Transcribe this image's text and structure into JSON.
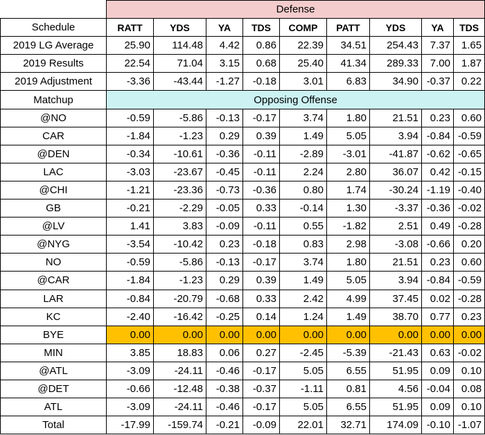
{
  "header": {
    "defense_label": "Defense",
    "schedule_label": "Schedule",
    "columns": [
      "RATT",
      "YDS",
      "YA",
      "TDS",
      "COMP",
      "PATT",
      "YDS",
      "YA",
      "TDS"
    ]
  },
  "summary_rows": [
    {
      "label": "2019 LG Average",
      "values": [
        "25.90",
        "114.48",
        "4.42",
        "0.86",
        "22.39",
        "34.51",
        "254.43",
        "7.37",
        "1.65"
      ]
    },
    {
      "label": "2019 Results",
      "values": [
        "22.54",
        "71.04",
        "3.15",
        "0.68",
        "25.40",
        "41.34",
        "289.33",
        "7.00",
        "1.87"
      ]
    },
    {
      "label": "2019 Adjustment",
      "values": [
        "-3.36",
        "-43.44",
        "-1.27",
        "-0.18",
        "3.01",
        "6.83",
        "34.90",
        "-0.37",
        "0.22"
      ]
    }
  ],
  "matchup_header": {
    "label": "Matchup",
    "band_label": "Opposing Offense"
  },
  "matchups": [
    {
      "opponent": "@NO",
      "values": [
        "-0.59",
        "-5.86",
        "-0.13",
        "-0.17",
        "3.74",
        "1.80",
        "21.51",
        "0.23",
        "0.60"
      ]
    },
    {
      "opponent": "CAR",
      "values": [
        "-1.84",
        "-1.23",
        "0.29",
        "0.39",
        "1.49",
        "5.05",
        "3.94",
        "-0.84",
        "-0.59"
      ]
    },
    {
      "opponent": "@DEN",
      "values": [
        "-0.34",
        "-10.61",
        "-0.36",
        "-0.11",
        "-2.89",
        "-3.01",
        "-41.87",
        "-0.62",
        "-0.65"
      ]
    },
    {
      "opponent": "LAC",
      "values": [
        "-3.03",
        "-23.67",
        "-0.45",
        "-0.11",
        "2.24",
        "2.80",
        "36.07",
        "0.42",
        "-0.15"
      ]
    },
    {
      "opponent": "@CHI",
      "values": [
        "-1.21",
        "-23.36",
        "-0.73",
        "-0.36",
        "0.80",
        "1.74",
        "-30.24",
        "-1.19",
        "-0.40"
      ]
    },
    {
      "opponent": "GB",
      "values": [
        "-0.21",
        "-2.29",
        "-0.05",
        "0.33",
        "-0.14",
        "1.30",
        "-3.37",
        "-0.36",
        "-0.02"
      ]
    },
    {
      "opponent": "@LV",
      "values": [
        "1.41",
        "3.83",
        "-0.09",
        "-0.11",
        "0.55",
        "-1.82",
        "2.51",
        "0.49",
        "-0.28"
      ]
    },
    {
      "opponent": "@NYG",
      "values": [
        "-3.54",
        "-10.42",
        "0.23",
        "-0.18",
        "0.83",
        "2.98",
        "-3.08",
        "-0.66",
        "0.20"
      ]
    },
    {
      "opponent": "NO",
      "values": [
        "-0.59",
        "-5.86",
        "-0.13",
        "-0.17",
        "3.74",
        "1.80",
        "21.51",
        "0.23",
        "0.60"
      ]
    },
    {
      "opponent": "@CAR",
      "values": [
        "-1.84",
        "-1.23",
        "0.29",
        "0.39",
        "1.49",
        "5.05",
        "3.94",
        "-0.84",
        "-0.59"
      ]
    },
    {
      "opponent": "LAR",
      "values": [
        "-0.84",
        "-20.79",
        "-0.68",
        "0.33",
        "2.42",
        "4.99",
        "37.45",
        "0.02",
        "-0.28"
      ]
    },
    {
      "opponent": "KC",
      "values": [
        "-2.40",
        "-16.42",
        "-0.25",
        "0.14",
        "1.24",
        "1.49",
        "38.70",
        "0.77",
        "0.23"
      ]
    },
    {
      "opponent": "BYE",
      "values": [
        "0.00",
        "0.00",
        "0.00",
        "0.00",
        "0.00",
        "0.00",
        "0.00",
        "0.00",
        "0.00"
      ],
      "highlight": true
    },
    {
      "opponent": "MIN",
      "values": [
        "3.85",
        "18.83",
        "0.06",
        "0.27",
        "-2.45",
        "-5.39",
        "-21.43",
        "0.63",
        "-0.02"
      ]
    },
    {
      "opponent": "@ATL",
      "values": [
        "-3.09",
        "-24.11",
        "-0.46",
        "-0.17",
        "5.05",
        "6.55",
        "51.95",
        "0.09",
        "0.10"
      ]
    },
    {
      "opponent": "@DET",
      "values": [
        "-0.66",
        "-12.48",
        "-0.38",
        "-0.37",
        "-1.11",
        "0.81",
        "4.56",
        "-0.04",
        "0.08"
      ]
    },
    {
      "opponent": "ATL",
      "values": [
        "-3.09",
        "-24.11",
        "-0.46",
        "-0.17",
        "5.05",
        "6.55",
        "51.95",
        "0.09",
        "0.10"
      ]
    }
  ],
  "total_row": {
    "label": "Total",
    "values": [
      "-17.99",
      "-159.74",
      "-0.21",
      "-0.09",
      "22.01",
      "32.71",
      "174.09",
      "-0.10",
      "-1.07"
    ]
  },
  "colors": {
    "defense_band": "#f4cccc",
    "offense_band": "#ccf2f4",
    "bye_highlight": "#ffc000"
  }
}
